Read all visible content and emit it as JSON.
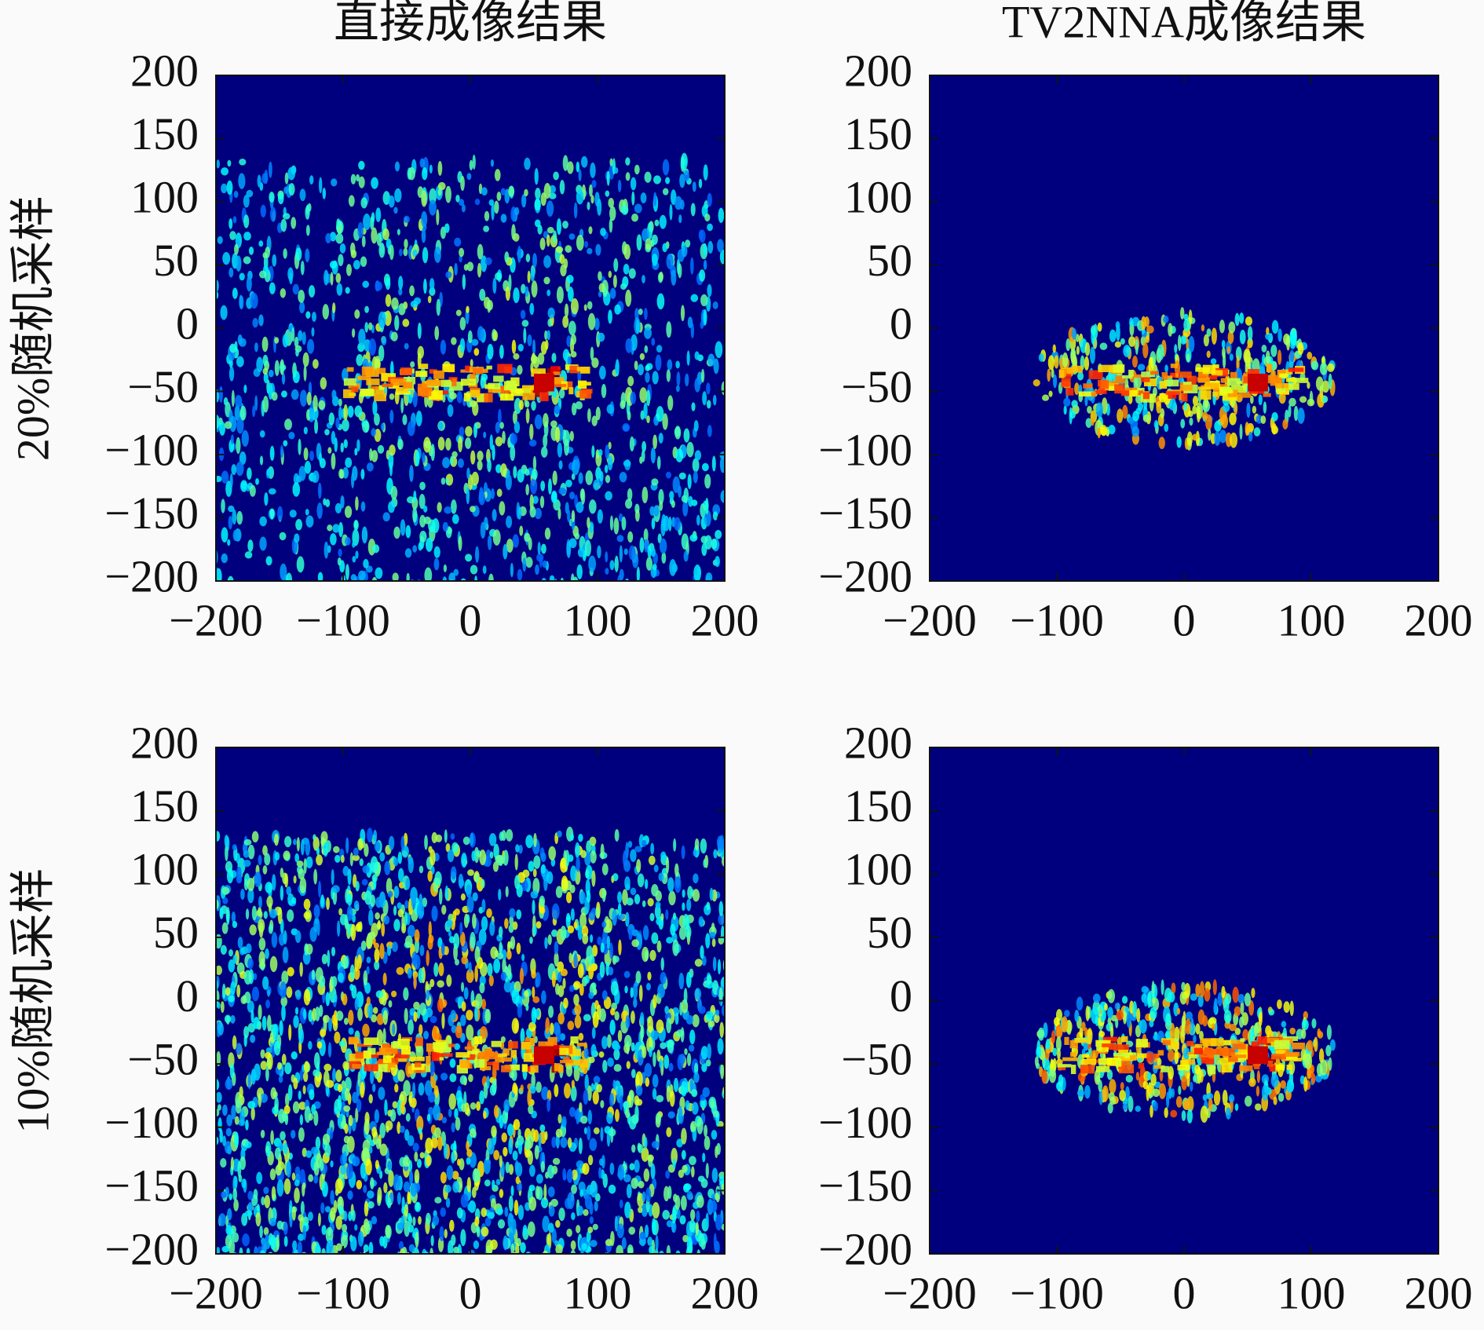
{
  "chart_data": [
    {
      "type": "heatmap",
      "title": "直接成像结果",
      "ylabel": "20%随机采样",
      "xlim": [
        -200,
        200
      ],
      "ylim": [
        -200,
        200
      ],
      "xticks": [
        {
          "value": -200,
          "label": "−200"
        },
        {
          "value": -100,
          "label": "−100"
        },
        0,
        100,
        200
      ],
      "yticks": [
        {
          "value": -200,
          "label": "−200"
        },
        {
          "value": -150,
          "label": "−150"
        },
        {
          "value": -100,
          "label": "−100"
        },
        {
          "value": -50,
          "label": "−50"
        },
        0,
        50,
        100,
        150,
        200
      ]
    },
    {
      "type": "heatmap",
      "title": "TV2NNA成像结果",
      "xlim": [
        -200,
        200
      ],
      "ylim": [
        -200,
        200
      ],
      "xticks": [
        {
          "value": -200,
          "label": "−200"
        },
        {
          "value": -100,
          "label": "−100"
        },
        0,
        100,
        200
      ],
      "yticks": [
        {
          "value": -200,
          "label": "−200"
        },
        {
          "value": -150,
          "label": "−150"
        },
        {
          "value": -100,
          "label": "−100"
        },
        {
          "value": -50,
          "label": "−50"
        },
        0,
        50,
        100,
        150,
        200
      ]
    },
    {
      "type": "heatmap",
      "ylabel": "10%随机采样",
      "xlim": [
        -200,
        200
      ],
      "ylim": [
        -200,
        200
      ],
      "xticks": [
        {
          "value": -200,
          "label": "−200"
        },
        {
          "value": -100,
          "label": "−100"
        },
        0,
        100,
        200
      ],
      "yticks": [
        {
          "value": -200,
          "label": "−200"
        },
        {
          "value": -150,
          "label": "−150"
        },
        {
          "value": -100,
          "label": "−100"
        },
        {
          "value": -50,
          "label": "−50"
        },
        0,
        50,
        100,
        150,
        200
      ]
    },
    {
      "type": "heatmap",
      "xlim": [
        -200,
        200
      ],
      "ylim": [
        -200,
        200
      ],
      "xticks": [
        {
          "value": -200,
          "label": "−200"
        },
        {
          "value": -100,
          "label": "−100"
        },
        0,
        100,
        200
      ],
      "yticks": [
        {
          "value": -200,
          "label": "−200"
        },
        {
          "value": -150,
          "label": "−150"
        },
        {
          "value": -100,
          "label": "−100"
        },
        {
          "value": -50,
          "label": "−50"
        },
        0,
        50,
        100,
        150,
        200
      ]
    }
  ]
}
